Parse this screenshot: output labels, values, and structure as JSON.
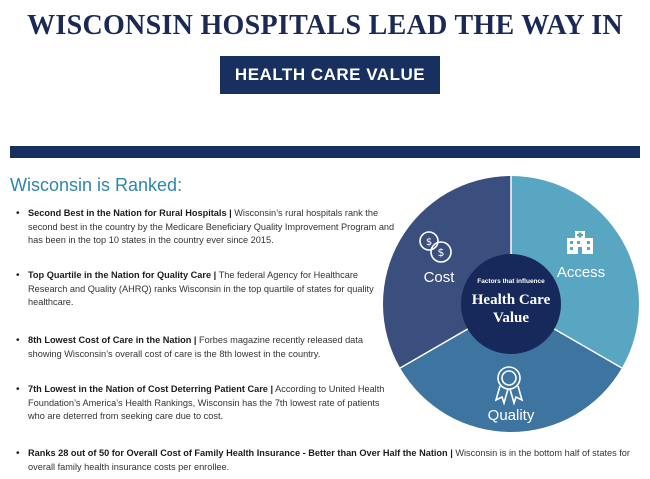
{
  "header": {
    "title": "WISCONSIN HOSPITALS LEAD THE WAY IN",
    "subtitle": "HEALTH CARE VALUE"
  },
  "section": {
    "heading": "Wisconsin is Ranked:"
  },
  "rankings": [
    {
      "lead": "Second Best in the Nation for Rural Hospitals |",
      "text": " Wisconsin’s rural hospitals rank the second best in the country by the Medicare Beneficiary Quality Improvement Program and has been in the top 10 states in the country ever since 2015."
    },
    {
      "lead": "Top Quartile in the Nation for Quality Care |",
      "text": " The federal Agency for Healthcare Research and Quality (AHRQ) ranks Wisconsin in the top quartile of states for quality healthcare."
    },
    {
      "lead": "8th Lowest Cost of Care in the Nation |",
      "text": " Forbes magazine recently released data showing Wisconsin’s overall cost of care is the 8th lowest in the country."
    },
    {
      "lead": "7th Lowest in the Nation of Cost Deterring Patient Care |",
      "text": " According to United Health Foundation’s America’s Health Rankings, Wisconsin has the 7th lowest rate of patients who are deterred from seeking care due to cost."
    },
    {
      "lead": "Ranks 28 out of 50 for Overall Cost of Family Health Insurance - Better than Over Half the Nation |",
      "text": " Wisconsin is in the bottom half of states for overall family health insurance costs per enrollee."
    }
  ],
  "graphic": {
    "center_small": "Factors that influence",
    "center_line1": "Health Care",
    "center_line2": "Value",
    "segments": [
      {
        "label": "Cost",
        "icon": "coins-icon",
        "color": "#3a4f7e"
      },
      {
        "label": "Access",
        "icon": "hospital-icon",
        "color": "#58a6c2"
      },
      {
        "label": "Quality",
        "icon": "award-ribbon-icon",
        "color": "#3e74a0"
      }
    ],
    "center_color": "#16295a"
  }
}
